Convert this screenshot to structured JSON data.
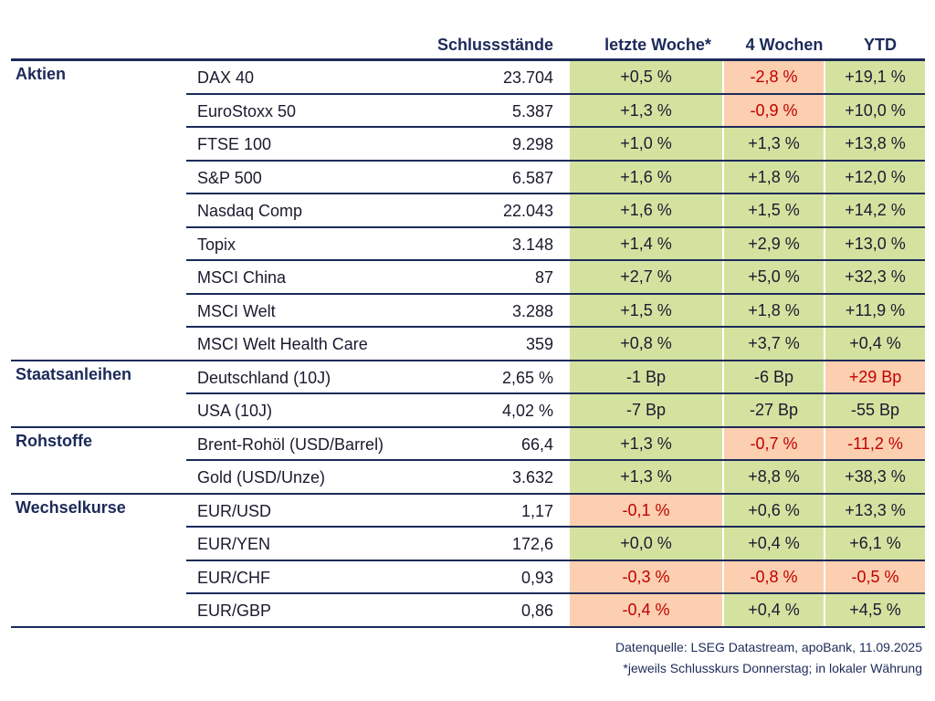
{
  "headers": {
    "close": "Schlussstände",
    "week": "letzte Woche*",
    "four_weeks": "4 Wochen",
    "ytd": "YTD"
  },
  "rows": [
    {
      "cat": "Aktien",
      "name": "DAX 40",
      "close": "23.704",
      "week": "+0,5 %",
      "w_s": "pos",
      "four": "-2,8 %",
      "f_s": "neg",
      "ytd": "+19,1 %",
      "y_s": "pos"
    },
    {
      "cat": "",
      "name": "EuroStoxx 50",
      "close": "5.387",
      "week": "+1,3 %",
      "w_s": "pos",
      "four": "-0,9 %",
      "f_s": "neg",
      "ytd": "+10,0 %",
      "y_s": "pos"
    },
    {
      "cat": "",
      "name": "FTSE 100",
      "close": "9.298",
      "week": "+1,0 %",
      "w_s": "pos",
      "four": "+1,3 %",
      "f_s": "pos",
      "ytd": "+13,8 %",
      "y_s": "pos"
    },
    {
      "cat": "",
      "name": "S&P 500",
      "close": "6.587",
      "week": "+1,6 %",
      "w_s": "pos",
      "four": "+1,8 %",
      "f_s": "pos",
      "ytd": "+12,0 %",
      "y_s": "pos"
    },
    {
      "cat": "",
      "name": "Nasdaq Comp",
      "close": "22.043",
      "week": "+1,6 %",
      "w_s": "pos",
      "four": "+1,5 %",
      "f_s": "pos",
      "ytd": "+14,2 %",
      "y_s": "pos"
    },
    {
      "cat": "",
      "name": "Topix",
      "close": "3.148",
      "week": "+1,4 %",
      "w_s": "pos",
      "four": "+2,9 %",
      "f_s": "pos",
      "ytd": "+13,0 %",
      "y_s": "pos"
    },
    {
      "cat": "",
      "name": "MSCI China",
      "close": "87",
      "week": "+2,7 %",
      "w_s": "pos",
      "four": "+5,0 %",
      "f_s": "pos",
      "ytd": "+32,3 %",
      "y_s": "pos"
    },
    {
      "cat": "",
      "name": "MSCI Welt",
      "close": "3.288",
      "week": "+1,5 %",
      "w_s": "pos",
      "four": "+1,8 %",
      "f_s": "pos",
      "ytd": "+11,9 %",
      "y_s": "pos"
    },
    {
      "cat": "",
      "name": "MSCI Welt Health Care",
      "close": "359",
      "week": "+0,8 %",
      "w_s": "pos",
      "four": "+3,7 %",
      "f_s": "pos",
      "ytd": "+0,4 %",
      "y_s": "pos"
    },
    {
      "cat": "Staatsanleihen",
      "name": "Deutschland (10J)",
      "close": "2,65 %",
      "week": "-1 Bp",
      "w_s": "pos",
      "four": "-6 Bp",
      "f_s": "pos",
      "ytd": "+29 Bp",
      "y_s": "neg"
    },
    {
      "cat": "",
      "name": "USA (10J)",
      "close": "4,02 %",
      "week": "-7 Bp",
      "w_s": "pos",
      "four": "-27 Bp",
      "f_s": "pos",
      "ytd": "-55 Bp",
      "y_s": "pos"
    },
    {
      "cat": "Rohstoffe",
      "name": "Brent-Rohöl (USD/Barrel)",
      "close": "66,4",
      "week": "+1,3 %",
      "w_s": "pos",
      "four": "-0,7 %",
      "f_s": "neg",
      "ytd": "-11,2 %",
      "y_s": "neg"
    },
    {
      "cat": "",
      "name": "Gold (USD/Unze)",
      "close": "3.632",
      "week": "+1,3 %",
      "w_s": "pos",
      "four": "+8,8 %",
      "f_s": "pos",
      "ytd": "+38,3 %",
      "y_s": "pos"
    },
    {
      "cat": "Wechselkurse",
      "name": "EUR/USD",
      "close": "1,17",
      "week": "-0,1 %",
      "w_s": "neg",
      "four": "+0,6 %",
      "f_s": "pos",
      "ytd": "+13,3 %",
      "y_s": "pos"
    },
    {
      "cat": "",
      "name": "EUR/YEN",
      "close": "172,6",
      "week": "+0,0 %",
      "w_s": "pos",
      "four": "+0,4 %",
      "f_s": "pos",
      "ytd": "+6,1 %",
      "y_s": "pos"
    },
    {
      "cat": "",
      "name": "EUR/CHF",
      "close": "0,93",
      "week": "-0,3 %",
      "w_s": "neg",
      "four": "-0,8 %",
      "f_s": "neg",
      "ytd": "-0,5 %",
      "y_s": "neg"
    },
    {
      "cat": "",
      "name": "EUR/GBP",
      "close": "0,86",
      "week": "-0,4 %",
      "w_s": "neg",
      "four": "+0,4 %",
      "f_s": "pos",
      "ytd": "+4,5 %",
      "y_s": "pos"
    }
  ],
  "footer": {
    "source": "Datenquelle: LSEG Datastream, apoBank, 11.09.2025",
    "note": "*jeweils Schlusskurs Donnerstag; in lokaler Währung"
  },
  "colors": {
    "positive_bg": "#d4e2a0",
    "negative_bg": "#fbcfb0",
    "negative_text": "#c00000",
    "rule": "#1c2a59"
  }
}
